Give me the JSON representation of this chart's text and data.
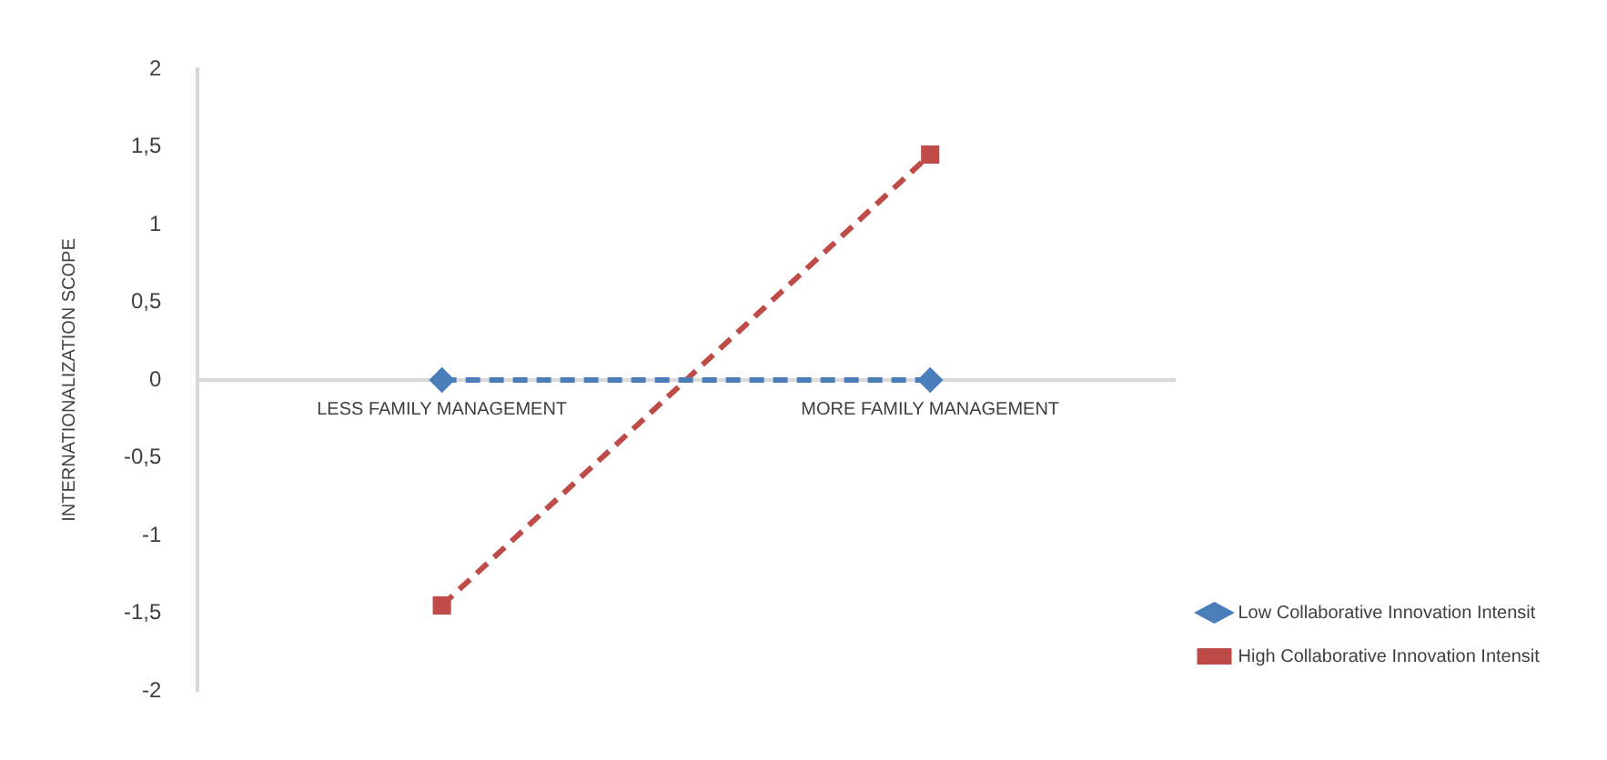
{
  "chart_data": {
    "type": "line",
    "ylabel": "INTERNATIONALIZATION SCOPE",
    "categories": [
      "LESS FAMILY MANAGEMENT",
      "MORE FAMILY MANAGEMENT"
    ],
    "series": [
      {
        "name": "Low Collaborative Innovation Intensit",
        "color": "#4a7ebb",
        "values": [
          0,
          0
        ],
        "marker": "diamond",
        "line_style": "dashed"
      },
      {
        "name": "High Collaborative Innovation Intensit",
        "color": "#be4b48",
        "values": [
          -1.45,
          1.45
        ],
        "marker": "square",
        "line_style": "dashed"
      }
    ],
    "ylim": [
      -2,
      2
    ],
    "yticks": [
      {
        "value": -2,
        "label": "-2"
      },
      {
        "value": -1.5,
        "label": "-1,5"
      },
      {
        "value": -1,
        "label": "-1"
      },
      {
        "value": -0.5,
        "label": "-0,5"
      },
      {
        "value": 0,
        "label": "0"
      },
      {
        "value": 0.5,
        "label": "0,5"
      },
      {
        "value": 1,
        "label": "1"
      },
      {
        "value": 1.5,
        "label": "1,5"
      },
      {
        "value": 2,
        "label": "2"
      }
    ],
    "grid": false,
    "legend": "bottom right"
  }
}
